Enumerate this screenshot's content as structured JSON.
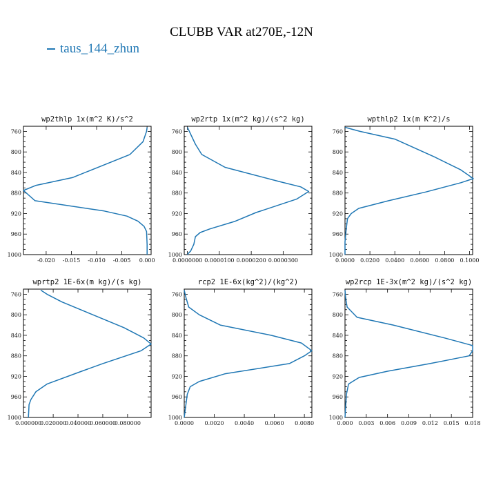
{
  "figure": {
    "title": "CLUBB VAR at270E,-12N",
    "legend": [
      {
        "label": "taus_144_zhun",
        "color": "#1f77b4"
      }
    ]
  },
  "chart_data": [
    {
      "type": "line",
      "title": "wp2thlp  1x(m^2 K)/s^2",
      "xlim": [
        -0.0245,
        0.0008
      ],
      "ylim": [
        1000,
        750
      ],
      "y_ticks": [
        760,
        800,
        840,
        880,
        920,
        960,
        1000
      ],
      "x_ticks": [
        -0.02,
        -0.015,
        -0.01,
        -0.005,
        0.0
      ],
      "x_tick_labels": [
        "-0.020",
        "-0.015",
        "-0.010",
        "-0.005",
        "0.000"
      ],
      "series": [
        {
          "name": "taus_144_zhun",
          "color": "#1f77b4",
          "x": [
            0.0,
            -0.0001,
            -0.0008,
            -0.0034,
            -0.0148,
            -0.022,
            -0.0245,
            -0.0222,
            -0.0085,
            -0.004,
            -0.0018,
            -0.0006,
            -0.0001,
            0.0,
            0.0
          ],
          "y": [
            752,
            760,
            780,
            805,
            850,
            865,
            875,
            895,
            915,
            925,
            935,
            945,
            955,
            980,
            1000
          ]
        }
      ]
    },
    {
      "type": "line",
      "title": "wp2rtp  1x(m^2 kg)/(s^2 kg)",
      "xlim": [
        -1e-06,
        3.9e-05
      ],
      "ylim": [
        1000,
        750
      ],
      "y_ticks": [
        760,
        800,
        840,
        880,
        920,
        960,
        1000
      ],
      "x_ticks": [
        0.0,
        1e-05,
        2e-05,
        3e-05
      ],
      "x_tick_labels": [
        "0.0000000",
        "0.0000100",
        "0.0000200",
        "0.0000300"
      ],
      "series": [
        {
          "name": "taus_144_zhun",
          "color": "#1f77b4",
          "x": [
            0.0,
            2.5e-06,
            4.5e-06,
            1.18e-05,
            2.9e-05,
            3.55e-05,
            3.8e-05,
            3.42e-05,
            2.15e-05,
            1.5e-05,
            7e-06,
            4e-06,
            2.5e-06,
            2e-06,
            1e-06,
            2e-07,
            0.0
          ],
          "y": [
            752,
            785,
            805,
            830,
            858,
            868,
            877,
            892,
            918,
            935,
            950,
            957,
            965,
            980,
            993,
            998,
            1000
          ]
        }
      ]
    },
    {
      "type": "line",
      "title": "wpthlp2  1x(m K^2)/s",
      "xlim": [
        0.0,
        0.1025
      ],
      "ylim": [
        1000,
        750
      ],
      "y_ticks": [
        760,
        800,
        840,
        880,
        920,
        960,
        1000
      ],
      "x_ticks": [
        0.0,
        0.02,
        0.04,
        0.06,
        0.08,
        0.1
      ],
      "x_tick_labels": [
        "0.0000",
        "0.0200",
        "0.0400",
        "0.0600",
        "0.0800",
        "0.1000"
      ],
      "series": [
        {
          "name": "taus_144_zhun",
          "color": "#1f77b4",
          "x": [
            0.0,
            0.012,
            0.04,
            0.072,
            0.093,
            0.099,
            0.103,
            0.093,
            0.065,
            0.035,
            0.011,
            0.005,
            0.002,
            0.001,
            0.0,
            0.0
          ],
          "y": [
            752,
            760,
            775,
            810,
            835,
            845,
            852,
            860,
            878,
            895,
            910,
            920,
            930,
            950,
            975,
            1000
          ]
        }
      ]
    },
    {
      "type": "line",
      "title": "wprtp2  1E-6x(m kg)/(s kg)",
      "xlim": [
        -0.004,
        0.099
      ],
      "ylim": [
        1000,
        750
      ],
      "y_ticks": [
        760,
        800,
        840,
        880,
        920,
        960,
        1000
      ],
      "x_ticks": [
        0.0,
        0.02,
        0.04,
        0.06,
        0.08
      ],
      "x_tick_labels": [
        "0.000000",
        "0.020000",
        "0.040000",
        "0.060000",
        "0.080000"
      ],
      "series": [
        {
          "name": "taus_144_zhun",
          "color": "#1f77b4",
          "x": [
            0.01,
            0.015,
            0.027,
            0.052,
            0.077,
            0.093,
            0.099,
            0.091,
            0.06,
            0.043,
            0.015,
            0.006,
            0.002,
            0.0005,
            0.0
          ],
          "y": [
            752,
            760,
            775,
            800,
            825,
            845,
            857,
            870,
            895,
            910,
            935,
            950,
            965,
            975,
            1000
          ]
        }
      ]
    },
    {
      "type": "line",
      "title": "rcp2  1E-6x(kg^2)/(kg^2)",
      "xlim": [
        0.0,
        0.0085
      ],
      "ylim": [
        1000,
        750
      ],
      "y_ticks": [
        760,
        800,
        840,
        880,
        920,
        960,
        1000
      ],
      "x_ticks": [
        0.0,
        0.002,
        0.004,
        0.006,
        0.008
      ],
      "x_tick_labels": [
        "0.0000",
        "0.0020",
        "0.0040",
        "0.0060",
        "0.0080"
      ],
      "series": [
        {
          "name": "taus_144_zhun",
          "color": "#1f77b4",
          "x": [
            0.0,
            0.0001,
            0.0003,
            0.001,
            0.0024,
            0.0058,
            0.0078,
            0.0085,
            0.008,
            0.007,
            0.0027,
            0.001,
            0.0004,
            0.0002,
            0.0
          ],
          "y": [
            752,
            765,
            785,
            800,
            820,
            840,
            855,
            870,
            880,
            895,
            915,
            930,
            940,
            955,
            1000
          ]
        }
      ]
    },
    {
      "type": "line",
      "title": "wp2rcp  1E-3x(m^2 kg)/(s^2 kg)",
      "xlim": [
        0.0,
        0.018
      ],
      "ylim": [
        1000,
        750
      ],
      "y_ticks": [
        760,
        800,
        840,
        880,
        920,
        960,
        1000
      ],
      "x_ticks": [
        0.0,
        0.003,
        0.006,
        0.009,
        0.012,
        0.015,
        0.018
      ],
      "x_tick_labels": [
        "0.000",
        "0.003",
        "0.006",
        "0.009",
        "0.012",
        "0.015",
        "0.018"
      ],
      "series": [
        {
          "name": "taus_144_zhun",
          "color": "#1f77b4",
          "x": [
            0.0,
            0.0001,
            0.0003,
            0.0017,
            0.0068,
            0.014,
            0.018,
            0.018,
            0.0175,
            0.012,
            0.006,
            0.002,
            0.0005,
            0.0002,
            0.0
          ],
          "y": [
            752,
            768,
            785,
            805,
            820,
            845,
            860,
            870,
            880,
            895,
            910,
            922,
            935,
            955,
            1000
          ]
        }
      ]
    }
  ]
}
